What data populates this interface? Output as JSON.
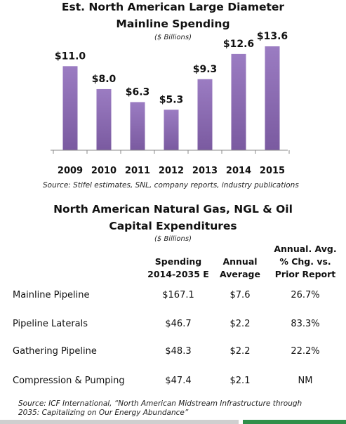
{
  "chart_data": {
    "type": "bar",
    "title": "Est. North American Large Diameter Mainline Spending",
    "title_lines": [
      "Est. North American Large Diameter",
      "Mainline Spending"
    ],
    "unit_label": "($ Billions)",
    "categories": [
      "2009",
      "2010",
      "2011",
      "2012",
      "2013",
      "2014",
      "2015"
    ],
    "values": [
      11.0,
      8.0,
      6.3,
      5.3,
      9.3,
      12.6,
      13.6
    ],
    "value_labels": [
      "$11.0",
      "$8.0",
      "$6.3",
      "$5.3",
      "$9.3",
      "$12.6",
      "$13.6"
    ],
    "ylim": [
      0,
      13.6
    ],
    "grid": false,
    "bar_color": "#7a5aa0",
    "bar_color_light": "#9b7cc2"
  },
  "chart_source": "Source: Stifel estimates, SNL, company reports, industry publications",
  "table": {
    "title_lines": [
      "North American Natural Gas, NGL & Oil",
      "Capital Expenditures"
    ],
    "unit_label": "($ Billions)",
    "columns": [
      [
        "Spending",
        "2014-2035 E"
      ],
      [
        "Annual",
        "Average"
      ],
      [
        "Annual. Avg.",
        "% Chg. vs.",
        "Prior Report"
      ]
    ],
    "rows": [
      {
        "label": "Mainline Pipeline",
        "spending": "$167.1",
        "average": "$7.6",
        "change": "26.7%"
      },
      {
        "label": "Pipeline Laterals",
        "spending": "$46.7",
        "average": "$2.2",
        "change": "83.3%"
      },
      {
        "label": "Gathering Pipeline",
        "spending": "$48.3",
        "average": "$2.2",
        "change": "22.2%"
      },
      {
        "label": "Compression & Pumping",
        "spending": "$47.4",
        "average": "$2.1",
        "change": "NM"
      }
    ],
    "source_lines": [
      "Source: ICF International, “North American Midstream Infrastructure through",
      "2035: Capitalizing on Our Energy Abundance”"
    ]
  },
  "colors": {
    "accent_gray": "#cfcfcf",
    "accent_green": "#2f8f4a"
  }
}
